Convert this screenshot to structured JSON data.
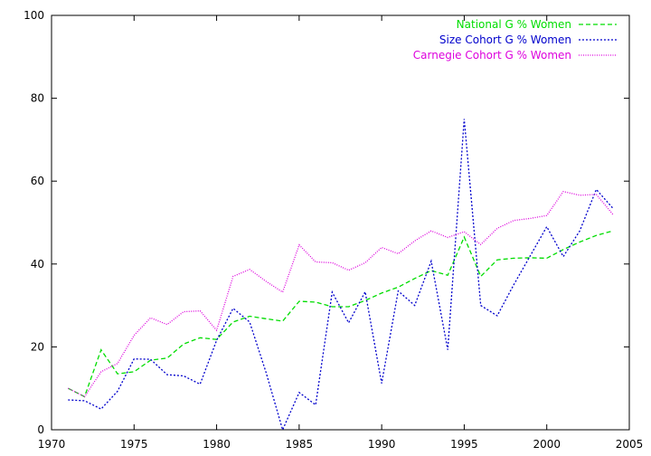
{
  "chart_data": {
    "type": "line",
    "title": "",
    "xlabel": "",
    "ylabel": "",
    "xlim": [
      1970,
      2005
    ],
    "ylim": [
      0,
      100
    ],
    "x_ticks": [
      1970,
      1975,
      1980,
      1985,
      1990,
      1995,
      2000,
      2005
    ],
    "y_ticks": [
      0,
      20,
      40,
      60,
      80,
      100
    ],
    "grid": false,
    "legend_position": "top-right",
    "series": [
      {
        "name": "National G % Women",
        "color": "#00dd00",
        "dash": "dashed",
        "x": [
          1971,
          1972,
          1973,
          1974,
          1975,
          1976,
          1977,
          1978,
          1979,
          1980,
          1981,
          1982,
          1983,
          1984,
          1985,
          1986,
          1987,
          1988,
          1989,
          1990,
          1991,
          1992,
          1993,
          1994,
          1995,
          1996,
          1997,
          1998,
          1999,
          2000,
          2001,
          2002,
          2003,
          2004
        ],
        "values": [
          10.0,
          8.0,
          19.3,
          13.5,
          14.0,
          16.8,
          17.3,
          20.7,
          22.2,
          21.8,
          26.0,
          27.4,
          26.8,
          26.2,
          31.0,
          30.8,
          29.7,
          29.7,
          31.2,
          33.0,
          34.4,
          36.5,
          38.4,
          37.3,
          46.5,
          37.0,
          41.0,
          41.4,
          41.5,
          41.4,
          43.5,
          45.3,
          46.9,
          48.0
        ]
      },
      {
        "name": "Size Cohort G % Women",
        "color": "#0000cc",
        "dash": "dotted",
        "x": [
          1971,
          1972,
          1973,
          1974,
          1975,
          1976,
          1977,
          1978,
          1979,
          1980,
          1981,
          1982,
          1983,
          1984,
          1985,
          1986,
          1987,
          1988,
          1989,
          1990,
          1991,
          1992,
          1993,
          1994,
          1995,
          1996,
          1997,
          1998,
          1999,
          2000,
          2001,
          2002,
          2003,
          2004
        ],
        "values": [
          7.2,
          7.0,
          5.0,
          9.3,
          17.1,
          17.0,
          13.3,
          13.0,
          11.0,
          21.6,
          29.3,
          26.0,
          13.8,
          0.0,
          9.0,
          6.0,
          33.2,
          25.8,
          33.3,
          11.2,
          33.5,
          30.0,
          40.7,
          19.3,
          75.0,
          30.0,
          27.5,
          35.0,
          42.0,
          49.0,
          41.8,
          48.0,
          58.0,
          53.5
        ]
      },
      {
        "name": "Carnegie Cohort G % Women",
        "color": "#dd00dd",
        "dash": "fine-dotted",
        "x": [
          1971,
          1972,
          1973,
          1974,
          1975,
          1976,
          1977,
          1978,
          1979,
          1980,
          1981,
          1982,
          1983,
          1984,
          1985,
          1986,
          1987,
          1988,
          1989,
          1990,
          1991,
          1992,
          1993,
          1994,
          1995,
          1996,
          1997,
          1998,
          1999,
          2000,
          2001,
          2002,
          2003,
          2004
        ],
        "values": [
          10.0,
          8.0,
          14.0,
          16.0,
          22.8,
          27.0,
          25.4,
          28.5,
          28.7,
          24.0,
          37.0,
          38.7,
          35.8,
          33.2,
          44.6,
          40.5,
          40.3,
          38.5,
          40.3,
          44.0,
          42.5,
          45.6,
          48.0,
          46.4,
          47.8,
          44.7,
          48.6,
          50.5,
          51.0,
          51.7,
          57.5,
          56.6,
          56.8,
          52.0
        ]
      }
    ]
  }
}
